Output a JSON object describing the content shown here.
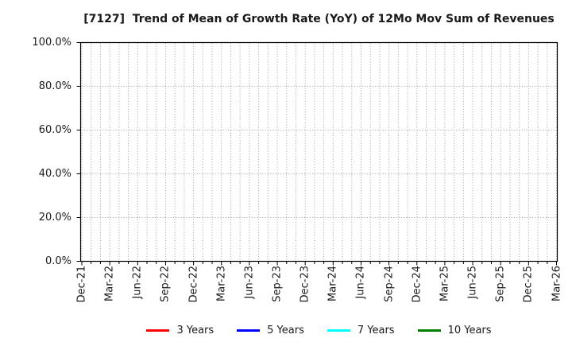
{
  "chart_data": {
    "type": "line",
    "title": "[7127]  Trend of Mean of Growth Rate (YoY) of 12Mo Mov Sum of Revenues",
    "x_tick_labels": [
      "Dec-21",
      "Mar-22",
      "Jun-22",
      "Sep-22",
      "Dec-22",
      "Mar-23",
      "Jun-23",
      "Sep-23",
      "Dec-23",
      "Mar-24",
      "Jun-24",
      "Sep-24",
      "Dec-24",
      "Mar-25",
      "Jun-25",
      "Sep-25",
      "Dec-25",
      "Mar-26"
    ],
    "x_minor_divisions_per_label": 3,
    "y_tick_labels": [
      "0.0%",
      "20.0%",
      "40.0%",
      "60.0%",
      "80.0%",
      "100.0%"
    ],
    "y_ticks_percent": [
      0,
      20,
      40,
      60,
      80,
      100
    ],
    "ylim_percent": [
      0,
      100
    ],
    "grid": {
      "show": true,
      "style": "dotted",
      "color": "#9e9e9e"
    },
    "legend": {
      "position": "bottom-center"
    },
    "series": [
      {
        "name": "3 Years",
        "color": "#ff0000",
        "values": []
      },
      {
        "name": "5 Years",
        "color": "#0000ff",
        "values": []
      },
      {
        "name": "7 Years",
        "color": "#00ffff",
        "values": []
      },
      {
        "name": "10 Years",
        "color": "#008000",
        "values": []
      }
    ]
  }
}
